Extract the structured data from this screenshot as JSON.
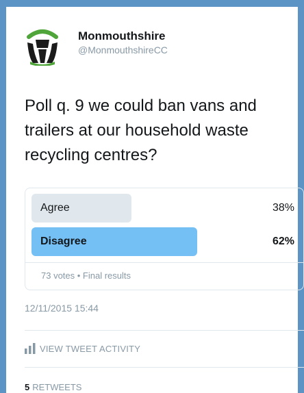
{
  "account": {
    "name": "Monmouthshire",
    "handle": "@MonmouthshireCC"
  },
  "tweet": {
    "text": "Poll q. 9 we could ban vans and trailers at our household waste recycling centres?",
    "timestamp": "12/11/2015 15:44"
  },
  "poll": {
    "options": [
      {
        "label": "Agree",
        "percent_text": "38%",
        "percent": 38
      },
      {
        "label": "Disagree",
        "percent_text": "62%",
        "percent": 62
      }
    ],
    "meta": "73 votes • Final results"
  },
  "actions": {
    "view_activity": "VIEW TWEET ACTIVITY",
    "retweets_count": "5",
    "retweets_label": "RETWEETS"
  },
  "colors": {
    "frame": "#5d94c6",
    "winner_bar": "#74c0f5",
    "loser_bar": "#e1e8ed",
    "muted_text": "#8899a6"
  },
  "icons": {
    "avatar": "council-logo-icon",
    "activity": "bar-chart-icon"
  }
}
